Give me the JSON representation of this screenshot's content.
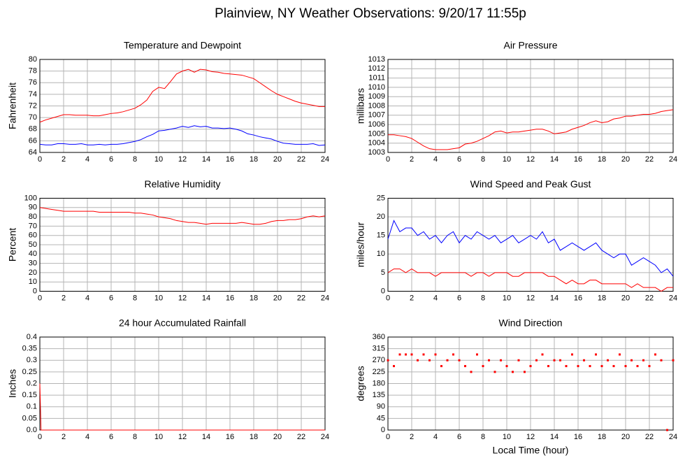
{
  "title": "Plainview, NY Weather Observations: 9/20/17 11:55p",
  "chart_data": [
    {
      "type": "line",
      "title": "Temperature and Dewpoint",
      "ylabel": "Fahrenheit",
      "x": [
        0,
        0.5,
        1,
        1.5,
        2,
        2.5,
        3,
        3.5,
        4,
        4.5,
        5,
        5.5,
        6,
        6.5,
        7,
        7.5,
        8,
        8.5,
        9,
        9.5,
        10,
        10.5,
        11,
        11.5,
        12,
        12.5,
        13,
        13.5,
        14,
        14.5,
        15,
        15.5,
        16,
        16.5,
        17,
        17.5,
        18,
        18.5,
        19,
        19.5,
        20,
        20.5,
        21,
        21.5,
        22,
        22.5,
        23,
        23.5,
        24
      ],
      "xlim": [
        0,
        24
      ],
      "xticks": [
        0,
        2,
        4,
        6,
        8,
        10,
        12,
        14,
        16,
        18,
        20,
        22,
        24
      ],
      "ylim": [
        64,
        80
      ],
      "yticks": [
        64,
        66,
        68,
        70,
        72,
        74,
        76,
        78,
        80
      ],
      "grid": true,
      "series": [
        {
          "color": "#ff0000",
          "values": [
            69.2,
            69.6,
            69.9,
            70.2,
            70.5,
            70.5,
            70.4,
            70.4,
            70.4,
            70.3,
            70.3,
            70.5,
            70.7,
            70.8,
            71.0,
            71.3,
            71.6,
            72.2,
            73.0,
            74.5,
            75.2,
            75.0,
            76.2,
            77.5,
            78.0,
            78.3,
            77.8,
            78.3,
            78.2,
            77.9,
            77.8,
            77.6,
            77.5,
            77.4,
            77.3,
            77.0,
            76.7,
            76.0,
            75.3,
            74.6,
            74.0,
            73.6,
            73.2,
            72.8,
            72.5,
            72.3,
            72.1,
            71.9,
            71.9
          ]
        },
        {
          "color": "#0000ff",
          "values": [
            65.4,
            65.3,
            65.3,
            65.5,
            65.5,
            65.4,
            65.4,
            65.5,
            65.3,
            65.3,
            65.4,
            65.3,
            65.4,
            65.4,
            65.5,
            65.7,
            65.9,
            66.2,
            66.7,
            67.1,
            67.7,
            67.8,
            68.0,
            68.2,
            68.5,
            68.3,
            68.6,
            68.4,
            68.5,
            68.2,
            68.2,
            68.1,
            68.2,
            68.0,
            67.7,
            67.2,
            67.0,
            66.7,
            66.5,
            66.3,
            65.9,
            65.6,
            65.5,
            65.4,
            65.4,
            65.4,
            65.5,
            65.2,
            65.3
          ]
        }
      ]
    },
    {
      "type": "line",
      "title": "Air Pressure",
      "ylabel": "millibars",
      "x": [
        0,
        0.5,
        1,
        1.5,
        2,
        2.5,
        3,
        3.5,
        4,
        4.5,
        5,
        5.5,
        6,
        6.5,
        7,
        7.5,
        8,
        8.5,
        9,
        9.5,
        10,
        10.5,
        11,
        11.5,
        12,
        12.5,
        13,
        13.5,
        14,
        14.5,
        15,
        15.5,
        16,
        16.5,
        17,
        17.5,
        18,
        18.5,
        19,
        19.5,
        20,
        20.5,
        21,
        21.5,
        22,
        22.5,
        23,
        23.5,
        24
      ],
      "xlim": [
        0,
        24
      ],
      "xticks": [
        0,
        2,
        4,
        6,
        8,
        10,
        12,
        14,
        16,
        18,
        20,
        22,
        24
      ],
      "ylim": [
        1003,
        1013
      ],
      "yticks": [
        1003,
        1004,
        1005,
        1006,
        1007,
        1008,
        1009,
        1010,
        1011,
        1012,
        1013
      ],
      "grid": true,
      "series": [
        {
          "color": "#ff0000",
          "values": [
            1004.9,
            1004.9,
            1004.8,
            1004.7,
            1004.5,
            1004.1,
            1003.7,
            1003.4,
            1003.3,
            1003.3,
            1003.3,
            1003.4,
            1003.5,
            1003.9,
            1004.0,
            1004.2,
            1004.5,
            1004.8,
            1005.2,
            1005.3,
            1005.1,
            1005.2,
            1005.2,
            1005.3,
            1005.4,
            1005.5,
            1005.5,
            1005.3,
            1005.0,
            1005.1,
            1005.2,
            1005.5,
            1005.7,
            1005.9,
            1006.2,
            1006.4,
            1006.2,
            1006.3,
            1006.6,
            1006.7,
            1006.9,
            1006.9,
            1007.0,
            1007.1,
            1007.1,
            1007.2,
            1007.4,
            1007.5,
            1007.6
          ]
        }
      ]
    },
    {
      "type": "line",
      "title": "Relative Humidity",
      "ylabel": "Percent",
      "x": [
        0,
        0.5,
        1,
        1.5,
        2,
        2.5,
        3,
        3.5,
        4,
        4.5,
        5,
        5.5,
        6,
        6.5,
        7,
        7.5,
        8,
        8.5,
        9,
        9.5,
        10,
        10.5,
        11,
        11.5,
        12,
        12.5,
        13,
        13.5,
        14,
        14.5,
        15,
        15.5,
        16,
        16.5,
        17,
        17.5,
        18,
        18.5,
        19,
        19.5,
        20,
        20.5,
        21,
        21.5,
        22,
        22.5,
        23,
        23.5,
        24
      ],
      "xlim": [
        0,
        24
      ],
      "xticks": [
        0,
        2,
        4,
        6,
        8,
        10,
        12,
        14,
        16,
        18,
        20,
        22,
        24
      ],
      "ylim": [
        0,
        100
      ],
      "yticks": [
        0,
        10,
        20,
        30,
        40,
        50,
        60,
        70,
        80,
        90,
        100
      ],
      "grid": true,
      "series": [
        {
          "color": "#ff0000",
          "values": [
            90,
            89,
            88,
            87,
            86,
            86,
            86,
            86,
            86,
            86,
            85,
            85,
            85,
            85,
            85,
            85,
            84,
            84,
            83,
            82,
            80,
            79,
            78,
            76,
            75,
            74,
            74,
            73,
            72,
            73,
            73,
            73,
            73,
            73,
            74,
            73,
            72,
            72,
            73,
            75,
            76,
            76,
            77,
            77,
            78,
            80,
            81,
            80,
            81
          ]
        }
      ]
    },
    {
      "type": "line",
      "title": "Wind Speed and Peak Gust",
      "ylabel": "miles/hour",
      "x": [
        0,
        0.5,
        1,
        1.5,
        2,
        2.5,
        3,
        3.5,
        4,
        4.5,
        5,
        5.5,
        6,
        6.5,
        7,
        7.5,
        8,
        8.5,
        9,
        9.5,
        10,
        10.5,
        11,
        11.5,
        12,
        12.5,
        13,
        13.5,
        14,
        14.5,
        15,
        15.5,
        16,
        16.5,
        17,
        17.5,
        18,
        18.5,
        19,
        19.5,
        20,
        20.5,
        21,
        21.5,
        22,
        22.5,
        23,
        23.5,
        24
      ],
      "xlim": [
        0,
        24
      ],
      "xticks": [
        0,
        2,
        4,
        6,
        8,
        10,
        12,
        14,
        16,
        18,
        20,
        22,
        24
      ],
      "ylim": [
        0,
        25
      ],
      "yticks": [
        0,
        5,
        10,
        15,
        20,
        25
      ],
      "grid": true,
      "series": [
        {
          "color": "#0000ff",
          "values": [
            14,
            19,
            16,
            17,
            17,
            15,
            16,
            14,
            15,
            13,
            15,
            16,
            13,
            15,
            14,
            16,
            15,
            14,
            15,
            13,
            14,
            15,
            13,
            14,
            15,
            14,
            16,
            13,
            14,
            11,
            12,
            13,
            12,
            11,
            12,
            13,
            11,
            10,
            9,
            10,
            10,
            7,
            8,
            9,
            8,
            7,
            5,
            6,
            4
          ]
        },
        {
          "color": "#ff0000",
          "values": [
            5,
            6,
            6,
            5,
            6,
            5,
            5,
            5,
            4,
            5,
            5,
            5,
            5,
            5,
            4,
            5,
            5,
            4,
            5,
            5,
            5,
            4,
            4,
            5,
            5,
            5,
            5,
            4,
            4,
            3,
            2,
            3,
            2,
            2,
            3,
            3,
            2,
            2,
            2,
            2,
            2,
            1,
            2,
            1,
            1,
            1,
            0,
            1,
            1
          ]
        }
      ]
    },
    {
      "type": "line",
      "title": "24 hour Accumulated Rainfall",
      "ylabel": "Inches",
      "x": [
        0,
        0.1,
        24
      ],
      "xlim": [
        0,
        24
      ],
      "xticks": [
        0,
        2,
        4,
        6,
        8,
        10,
        12,
        14,
        16,
        18,
        20,
        22,
        24
      ],
      "ylim": [
        0,
        0.4
      ],
      "yticks": [
        {
          "value": 0,
          "label": "0.0"
        },
        0.05,
        0.1,
        0.15,
        0.2,
        0.25,
        0.3,
        0.35,
        0.4
      ],
      "grid": true,
      "series": [
        {
          "color": "#ff0000",
          "values": [
            0.2,
            0,
            0
          ]
        }
      ]
    },
    {
      "type": "scatter",
      "title": "Wind Direction",
      "ylabel": "degrees",
      "xlabel": "Local Time (hour)",
      "x": [
        0,
        0.5,
        1,
        1.5,
        2,
        2.5,
        3,
        3.5,
        4,
        4.5,
        5,
        5.5,
        6,
        6.5,
        7,
        7.5,
        8,
        8.5,
        9,
        9.5,
        10,
        10.5,
        11,
        11.5,
        12,
        12.5,
        13,
        13.5,
        14,
        14.5,
        15,
        15.5,
        16,
        16.5,
        17,
        17.5,
        18,
        18.5,
        19,
        19.5,
        20,
        20.5,
        21,
        21.5,
        22,
        22.5,
        23,
        23.5,
        24
      ],
      "xlim": [
        0,
        24
      ],
      "xticks": [
        0,
        2,
        4,
        6,
        8,
        10,
        12,
        14,
        16,
        18,
        20,
        22,
        24
      ],
      "ylim": [
        0,
        360
      ],
      "yticks": [
        0,
        45,
        90,
        135,
        180,
        225,
        270,
        315,
        360
      ],
      "grid": true,
      "series": [
        {
          "color": "#ff0000",
          "values": [
            270,
            247.5,
            292.5,
            292.5,
            292.5,
            270,
            292.5,
            270,
            292.5,
            247.5,
            270,
            292.5,
            270,
            247.5,
            225,
            292.5,
            247.5,
            270,
            225,
            270,
            247.5,
            225,
            270,
            225,
            247.5,
            270,
            292.5,
            247.5,
            270,
            270,
            247.5,
            292.5,
            247.5,
            270,
            247.5,
            292.5,
            247.5,
            270,
            247.5,
            292.5,
            247.5,
            270,
            247.5,
            270,
            247.5,
            292.5,
            270,
            0,
            270
          ]
        }
      ]
    }
  ]
}
